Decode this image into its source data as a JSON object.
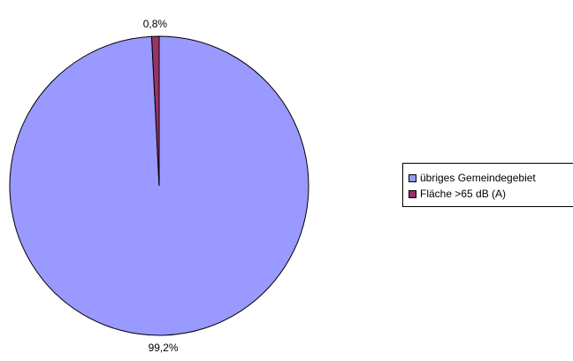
{
  "chart_data": {
    "type": "pie",
    "title": "",
    "slices": [
      {
        "name": "übriges Gemeindegebiet",
        "value": 99.2,
        "label": "99,2%",
        "color": "#9999ff"
      },
      {
        "name": "Fläche >65 dB (A)",
        "value": 0.8,
        "label": "0,8%",
        "color": "#993366"
      }
    ],
    "start_angle_deg": 0,
    "direction": "clockwise",
    "legend_position": "right"
  }
}
